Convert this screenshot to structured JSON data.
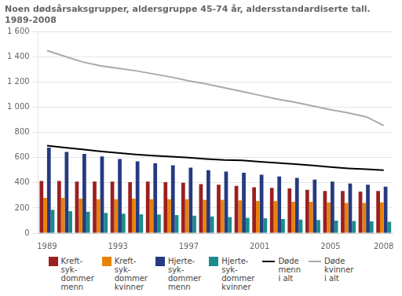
{
  "chart_data": {
    "type": "bar",
    "title": "Noen dødsårsaksgrupper, aldersgruppe 45-74 år, aldersstandardiserte tall.\n1989-2008",
    "categories": [
      "1989",
      null,
      null,
      null,
      "1993",
      null,
      null,
      null,
      "1997",
      null,
      null,
      null,
      "2001",
      null,
      null,
      null,
      "2005",
      null,
      null,
      "2008"
    ],
    "series": [
      {
        "name": "Kreft-\nsyk-\ndommer\nmenn",
        "type": "bar",
        "color": "#9B2020",
        "values": [
          415,
          415,
          410,
          410,
          410,
          405,
          410,
          405,
          400,
          390,
          385,
          375,
          365,
          360,
          355,
          345,
          335,
          335,
          330,
          335
        ]
      },
      {
        "name": "Kreft-\nsyk-\ndommer\nkvinner",
        "type": "bar",
        "color": "#E8820C",
        "values": [
          280,
          280,
          275,
          270,
          270,
          275,
          270,
          270,
          270,
          265,
          265,
          260,
          255,
          255,
          250,
          250,
          245,
          240,
          240,
          245
        ]
      },
      {
        "name": "Hjerte-\nsyk-\ndommer\nmenn",
        "type": "bar",
        "color": "#253A80",
        "values": [
          680,
          645,
          630,
          610,
          590,
          570,
          555,
          540,
          520,
          500,
          490,
          480,
          465,
          450,
          440,
          425,
          410,
          395,
          385,
          370
        ]
      },
      {
        "name": "Hjerte-\nsyk-\ndommer\nkvinner",
        "type": "bar",
        "color": "#1A8C8C",
        "values": [
          185,
          175,
          170,
          160,
          155,
          150,
          148,
          143,
          138,
          133,
          128,
          122,
          118,
          112,
          108,
          104,
          100,
          97,
          93,
          90
        ]
      },
      {
        "name": "Døde\nmenn\ni alt",
        "type": "line",
        "marker": "none",
        "color": "#000000",
        "values": [
          695,
          680,
          665,
          650,
          638,
          625,
          615,
          608,
          600,
          590,
          582,
          578,
          568,
          558,
          548,
          538,
          525,
          515,
          508,
          500
        ]
      },
      {
        "name": "Døde\nkvinner\ni alt",
        "type": "line",
        "marker": "none",
        "color": "#AAAAAA",
        "values": [
          1450,
          1405,
          1360,
          1330,
          1310,
          1290,
          1265,
          1240,
          1210,
          1185,
          1155,
          1125,
          1095,
          1065,
          1040,
          1010,
          980,
          955,
          925,
          855
        ]
      }
    ],
    "ylim": [
      0,
      1600
    ],
    "yticks": [
      0,
      200,
      400,
      600,
      800,
      {
        "value": 1000,
        "label": "1 000"
      },
      {
        "value": 1200,
        "label": "1 200"
      },
      {
        "value": 1400,
        "label": "1 400"
      },
      {
        "value": 1600,
        "label": "1 600"
      }
    ],
    "grid": true,
    "legend": "bottom"
  }
}
